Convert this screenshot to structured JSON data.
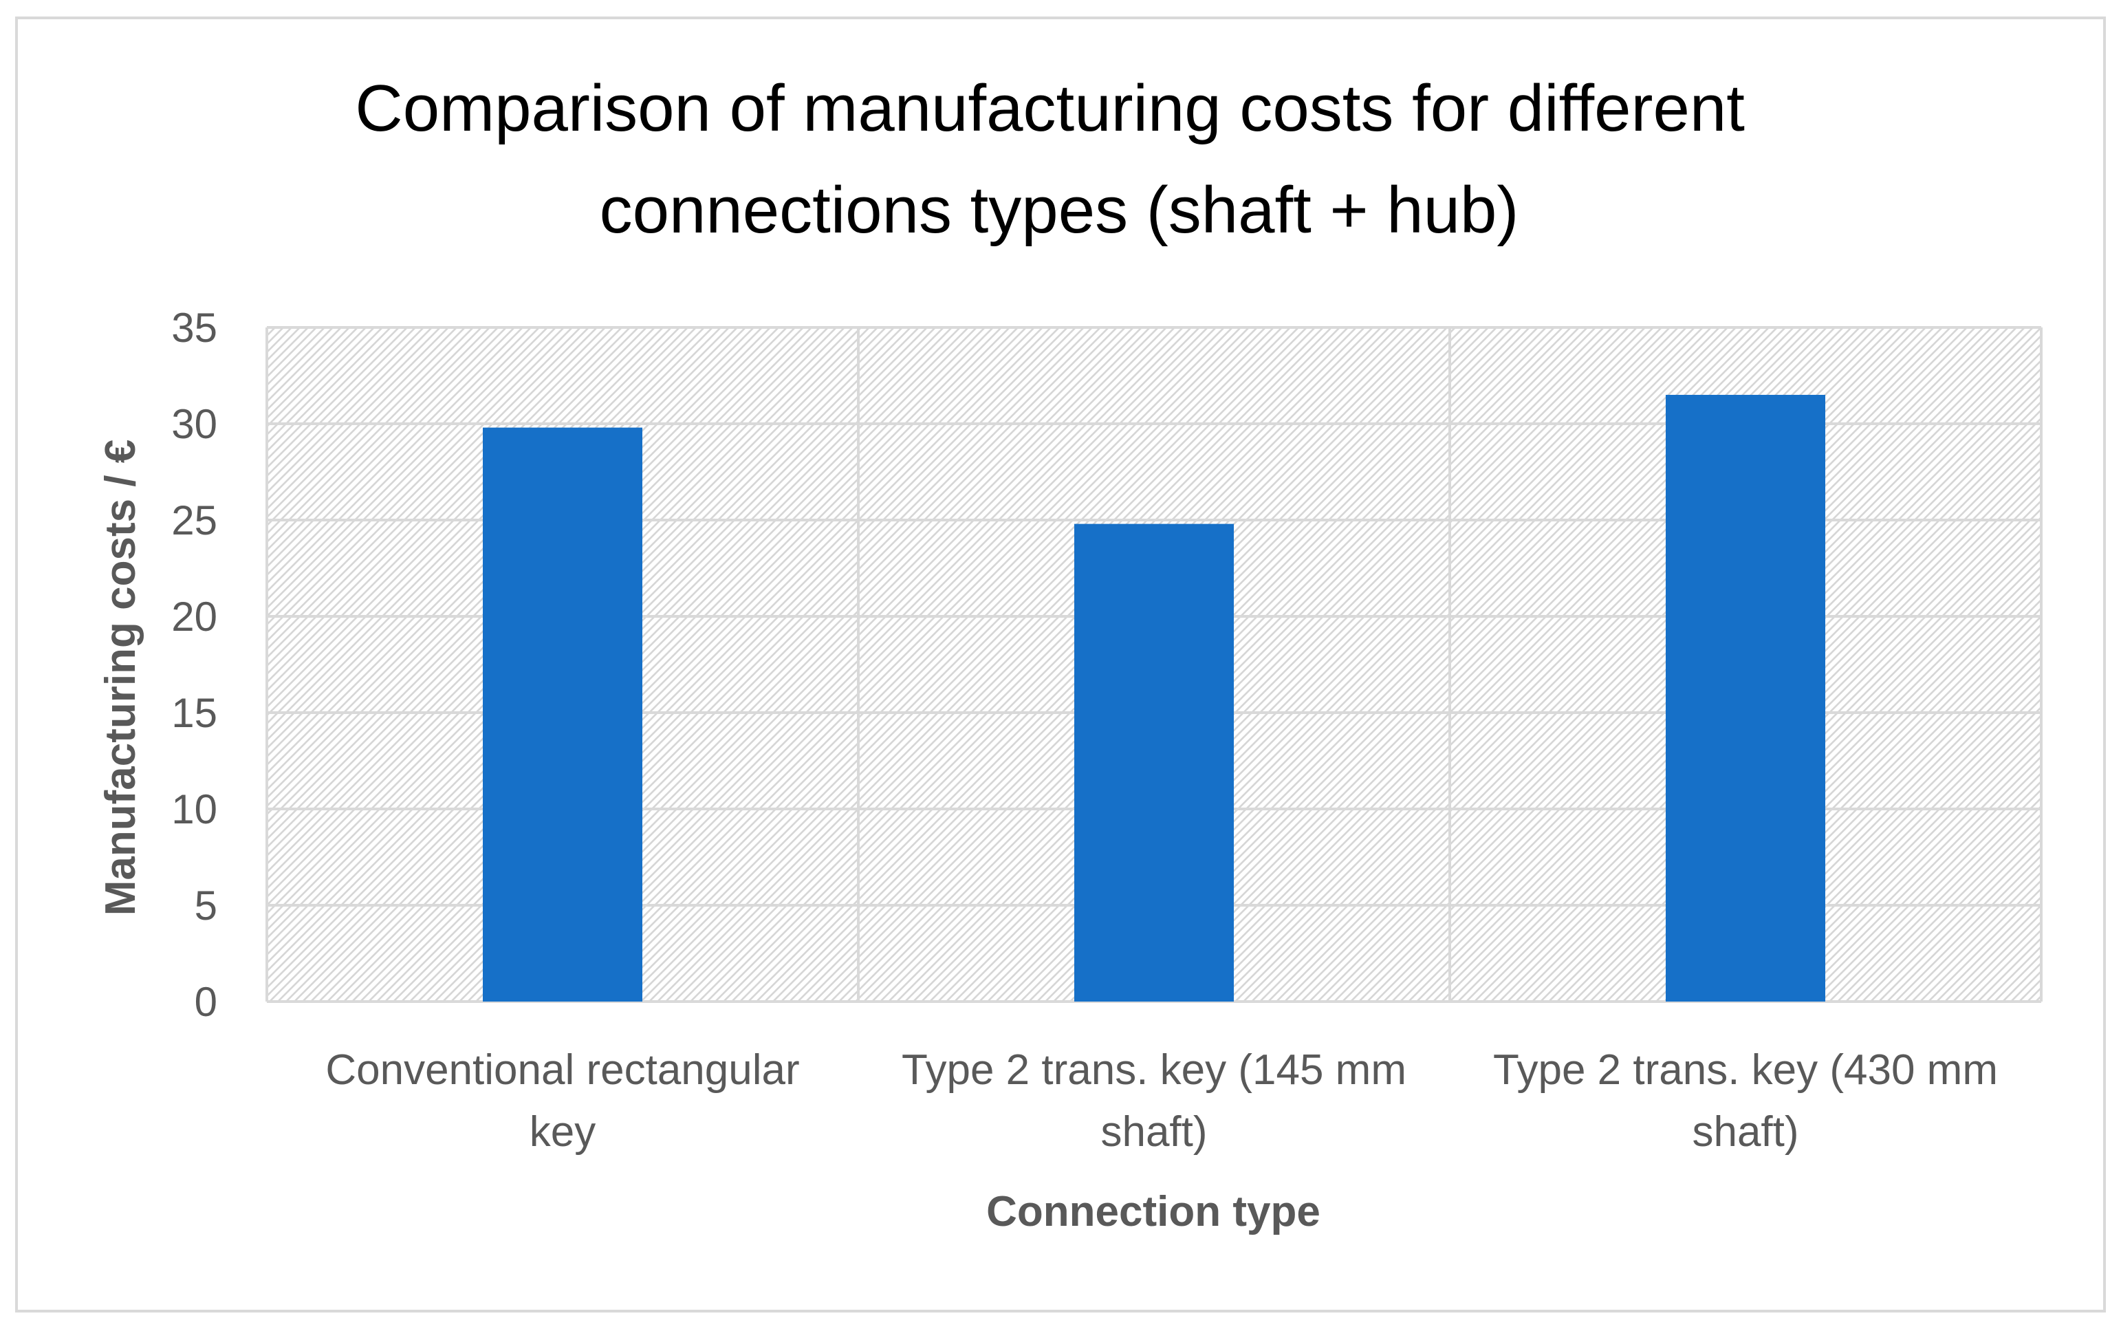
{
  "chart_data": {
    "type": "bar",
    "title": "Comparison of manufacturing costs for different connections types (shaft + hub)",
    "title_lines": [
      "Comparison of manufacturing costs for different",
      "connections types (shaft + hub)"
    ],
    "categories": [
      "Conventional rectangular key",
      "Type 2 trans. key (145 mm shaft)",
      "Type 2 trans. key (430 mm shaft)"
    ],
    "category_lines": [
      [
        "Conventional rectangular",
        "key"
      ],
      [
        "Type 2 trans. key (145 mm",
        "shaft)"
      ],
      [
        "Type 2 trans. key (430 mm",
        "shaft)"
      ]
    ],
    "values": [
      29.8,
      24.8,
      31.5
    ],
    "xlabel": "Connection type",
    "ylabel": "Manufacturing costs / €",
    "ylim": [
      0,
      35
    ],
    "yticks": [
      0,
      5,
      10,
      15,
      20,
      25,
      30,
      35
    ],
    "grid": true,
    "legend": "none",
    "bar_color": "#1670C8",
    "grid_color": "#d9d9d9",
    "plot_pattern": "diagonal-hatch"
  }
}
